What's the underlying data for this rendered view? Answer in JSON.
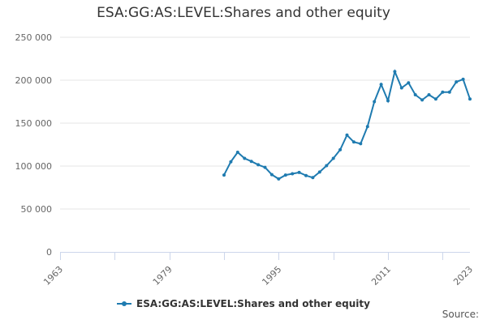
{
  "chart_data": {
    "type": "line",
    "title": "ESA:GG:AS:LEVEL:Shares and other equity",
    "xlabel": "",
    "ylabel": "",
    "x_ticks": [
      1963,
      1979,
      1995,
      2011,
      2023
    ],
    "x_range": [
      1963,
      2023
    ],
    "y_ticks": [
      0,
      50000,
      100000,
      150000,
      200000,
      250000
    ],
    "y_tick_labels": [
      "0",
      "50 000",
      "100 000",
      "150 000",
      "200 000",
      "250 000"
    ],
    "ylim": [
      0,
      250000
    ],
    "grid": true,
    "legend_position": "bottom-center",
    "color": "#1f7bb0",
    "series": [
      {
        "name": "ESA:GG:AS:LEVEL:Shares and other equity",
        "x": [
          1987,
          1988,
          1989,
          1990,
          1991,
          1992,
          1993,
          1994,
          1995,
          1996,
          1997,
          1998,
          1999,
          2000,
          2001,
          2002,
          2003,
          2004,
          2005,
          2006,
          2007,
          2008,
          2009,
          2010,
          2011,
          2012,
          2013,
          2014,
          2015,
          2016,
          2017,
          2018,
          2019,
          2020,
          2021,
          2022,
          2023
        ],
        "values": [
          89500,
          105000,
          116000,
          109000,
          105500,
          101500,
          98500,
          90000,
          85000,
          89500,
          91000,
          92500,
          89000,
          86500,
          93000,
          100500,
          109000,
          119000,
          136000,
          128000,
          126000,
          146000,
          175000,
          195000,
          176000,
          210000,
          191000,
          197000,
          183000,
          177000,
          183000,
          178000,
          186000,
          186000,
          198000,
          201000,
          178000
        ]
      }
    ]
  },
  "source_label": "Source:"
}
